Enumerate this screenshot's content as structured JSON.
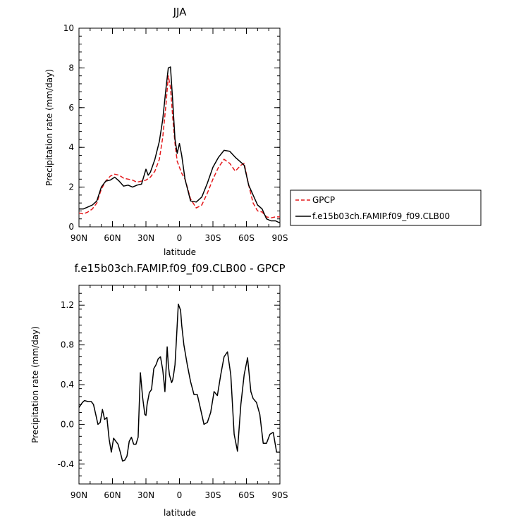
{
  "chart_data": [
    {
      "type": "line",
      "title": "JJA",
      "xlabel": "latitude",
      "ylabel": "Precipitation rate (mm/day)",
      "xlim": [
        90,
        -90
      ],
      "ylim": [
        0,
        10
      ],
      "xticks": [
        90,
        60,
        30,
        0,
        -30,
        -60,
        -90
      ],
      "xtick_labels": [
        "90N",
        "60N",
        "30N",
        "0",
        "30S",
        "60S",
        "90S"
      ],
      "yticks": [
        0,
        2,
        4,
        6,
        8,
        10
      ],
      "ytick_labels": [
        "0",
        "2",
        "4",
        "6",
        "8",
        "10"
      ],
      "legend_position": "right",
      "series": [
        {
          "name": "GPCP",
          "color": "#e4191c",
          "dash": "dashed",
          "x": [
            90,
            86,
            82,
            78,
            74,
            70,
            66,
            62,
            58,
            54,
            50,
            46,
            42,
            38,
            34,
            30,
            26,
            22,
            18,
            15,
            12,
            10,
            8,
            6,
            4,
            2,
            0,
            -2,
            -5,
            -10,
            -15,
            -20,
            -25,
            -30,
            -35,
            -40,
            -45,
            -50,
            -55,
            -58,
            -62,
            -66,
            -70,
            -74,
            -78,
            -82,
            -86,
            -90
          ],
          "values": [
            0.7,
            0.65,
            0.75,
            0.9,
            1.2,
            1.9,
            2.3,
            2.55,
            2.65,
            2.6,
            2.45,
            2.4,
            2.35,
            2.25,
            2.3,
            2.35,
            2.5,
            2.8,
            3.4,
            4.5,
            6.2,
            7.6,
            7.0,
            5.5,
            4.2,
            3.3,
            3.0,
            2.7,
            2.4,
            1.4,
            0.95,
            1.1,
            1.7,
            2.4,
            3.0,
            3.4,
            3.2,
            2.8,
            3.1,
            3.2,
            2.1,
            1.2,
            0.8,
            0.75,
            0.5,
            0.45,
            0.5,
            0.5
          ]
        },
        {
          "name": "f.e15b03ch.FAMIP.f09_f09.CLB00",
          "color": "#000000",
          "dash": "solid",
          "x": [
            90,
            86,
            82,
            78,
            74,
            70,
            66,
            62,
            58,
            54,
            50,
            46,
            42,
            38,
            34,
            30,
            28,
            26,
            22,
            18,
            15,
            12,
            10,
            8,
            6,
            4,
            2,
            0,
            -2,
            -5,
            -10,
            -15,
            -20,
            -25,
            -30,
            -35,
            -40,
            -45,
            -50,
            -55,
            -58,
            -62,
            -66,
            -70,
            -74,
            -78,
            -82,
            -86,
            -90
          ],
          "values": [
            0.9,
            0.9,
            1.0,
            1.1,
            1.3,
            2.0,
            2.3,
            2.35,
            2.5,
            2.3,
            2.05,
            2.1,
            2.0,
            2.1,
            2.15,
            2.9,
            2.6,
            2.75,
            3.4,
            4.3,
            5.4,
            7.0,
            8.0,
            8.05,
            6.3,
            4.4,
            3.7,
            4.2,
            3.6,
            2.4,
            1.3,
            1.25,
            1.5,
            2.2,
            3.0,
            3.5,
            3.85,
            3.8,
            3.5,
            3.25,
            3.1,
            2.1,
            1.6,
            1.1,
            0.9,
            0.4,
            0.3,
            0.3,
            0.2
          ]
        }
      ]
    },
    {
      "type": "line",
      "title": "f.e15b03ch.FAMIP.f09_f09.CLB00 - GPCP",
      "xlabel": "latitude",
      "ylabel": "Precipitation rate (mm/day)",
      "xlim": [
        90,
        -90
      ],
      "ylim": [
        -0.6,
        1.4
      ],
      "xticks": [
        90,
        60,
        30,
        0,
        -30,
        -60,
        -90
      ],
      "xtick_labels": [
        "90N",
        "60N",
        "30N",
        "0",
        "30S",
        "60S",
        "90S"
      ],
      "yticks": [
        -0.4,
        0.0,
        0.4,
        0.8,
        1.2
      ],
      "ytick_labels": [
        "-0.4",
        "0.0",
        "0.4",
        "0.8",
        "1.2"
      ],
      "series": [
        {
          "color": "#000000",
          "dash": "solid",
          "x": [
            90,
            87,
            85,
            82,
            79,
            77,
            75,
            73,
            71,
            69,
            67,
            65,
            63,
            61,
            59,
            57,
            55,
            53,
            51,
            49,
            47,
            45,
            43,
            41,
            39,
            37,
            35,
            33,
            31,
            30,
            29,
            27,
            25,
            23,
            21,
            19,
            17,
            15,
            14,
            13,
            11,
            10,
            9,
            8,
            7,
            6,
            5,
            4,
            3,
            1,
            -1,
            -2,
            -4,
            -7,
            -10,
            -13,
            -16,
            -19,
            -22,
            -25,
            -28,
            -31,
            -34,
            -37,
            -40,
            -43,
            -46,
            -49,
            -52,
            -55,
            -58,
            -61,
            -64,
            -66,
            -69,
            -72,
            -75,
            -78,
            -81,
            -84,
            -87,
            -90
          ],
          "values": [
            0.17,
            0.22,
            0.24,
            0.23,
            0.23,
            0.2,
            0.1,
            0.0,
            0.02,
            0.15,
            0.05,
            0.07,
            -0.15,
            -0.28,
            -0.14,
            -0.17,
            -0.2,
            -0.28,
            -0.37,
            -0.36,
            -0.32,
            -0.17,
            -0.13,
            -0.2,
            -0.2,
            -0.13,
            0.52,
            0.27,
            0.1,
            0.09,
            0.2,
            0.32,
            0.35,
            0.56,
            0.6,
            0.66,
            0.68,
            0.55,
            0.45,
            0.33,
            0.78,
            0.6,
            0.5,
            0.46,
            0.42,
            0.45,
            0.52,
            0.6,
            0.8,
            1.21,
            1.15,
            1.0,
            0.8,
            0.6,
            0.43,
            0.3,
            0.3,
            0.15,
            0.0,
            0.02,
            0.12,
            0.33,
            0.29,
            0.5,
            0.68,
            0.73,
            0.5,
            -0.1,
            -0.27,
            0.2,
            0.5,
            0.67,
            0.33,
            0.26,
            0.22,
            0.1,
            -0.19,
            -0.19,
            -0.1,
            -0.08,
            -0.28,
            -0.28
          ]
        }
      ]
    }
  ]
}
